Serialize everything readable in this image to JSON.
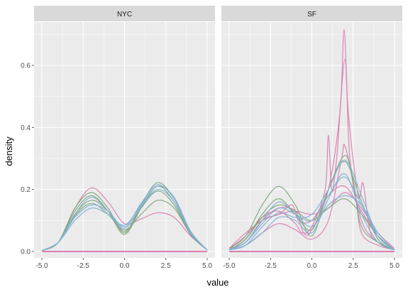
{
  "chart_data": {
    "type": "line",
    "subtype": "faceted-density",
    "xlabel": "value",
    "ylabel": "density",
    "xlim": [
      -5,
      5
    ],
    "ylim": [
      0,
      0.72
    ],
    "x_ticks": [
      -5,
      -2.5,
      0,
      2.5,
      5
    ],
    "x_tick_labels": [
      "-5.0",
      "-2.5",
      "0.0",
      "2.5",
      "5.0"
    ],
    "y_ticks": [
      0,
      0.2,
      0.4,
      0.6
    ],
    "y_tick_labels": [
      "0.0",
      "0.2",
      "0.4",
      "0.6"
    ],
    "grid": true,
    "legend": "none",
    "colors": {
      "green": "#7fa77f",
      "blue": "#7fb0d6",
      "pink": "#d97fb1",
      "panel_bg": "#ebebeb",
      "strip_bg": "#d9d9d9",
      "grid": "#ffffff"
    },
    "facets": [
      {
        "name": "NYC",
        "curves": [
          {
            "color": "pink",
            "points": [
              [
                -5,
                0.003
              ],
              [
                -4,
                0.03
              ],
              [
                -3,
                0.14
              ],
              [
                -2,
                0.205
              ],
              [
                -1,
                0.16
              ],
              [
                0,
                0.09
              ],
              [
                1,
                0.105
              ],
              [
                2,
                0.125
              ],
              [
                3,
                0.11
              ],
              [
                4,
                0.05
              ],
              [
                5,
                0.005
              ]
            ]
          },
          {
            "color": "green",
            "points": [
              [
                -5,
                0.003
              ],
              [
                -4,
                0.03
              ],
              [
                -3,
                0.14
              ],
              [
                -2,
                0.19
              ],
              [
                -1,
                0.14
              ],
              [
                0,
                0.06
              ],
              [
                1,
                0.15
              ],
              [
                2,
                0.222
              ],
              [
                3,
                0.17
              ],
              [
                4,
                0.06
              ],
              [
                5,
                0.005
              ]
            ]
          },
          {
            "color": "green",
            "points": [
              [
                -5,
                0.003
              ],
              [
                -4,
                0.03
              ],
              [
                -3,
                0.13
              ],
              [
                -2,
                0.18
              ],
              [
                -1,
                0.13
              ],
              [
                0,
                0.055
              ],
              [
                1,
                0.14
              ],
              [
                2,
                0.21
              ],
              [
                3,
                0.16
              ],
              [
                4,
                0.055
              ],
              [
                5,
                0.005
              ]
            ]
          },
          {
            "color": "green",
            "points": [
              [
                -5,
                0.003
              ],
              [
                -4,
                0.03
              ],
              [
                -3,
                0.12
              ],
              [
                -2,
                0.165
              ],
              [
                -1,
                0.13
              ],
              [
                0,
                0.065
              ],
              [
                1,
                0.14
              ],
              [
                2,
                0.195
              ],
              [
                3,
                0.15
              ],
              [
                4,
                0.055
              ],
              [
                5,
                0.005
              ]
            ]
          },
          {
            "color": "green",
            "points": [
              [
                -5,
                0.003
              ],
              [
                -4,
                0.03
              ],
              [
                -3,
                0.115
              ],
              [
                -2,
                0.155
              ],
              [
                -1,
                0.12
              ],
              [
                0,
                0.07
              ],
              [
                1,
                0.12
              ],
              [
                2,
                0.165
              ],
              [
                3,
                0.14
              ],
              [
                4,
                0.055
              ],
              [
                5,
                0.005
              ]
            ]
          },
          {
            "color": "blue",
            "points": [
              [
                -5,
                0.003
              ],
              [
                -4,
                0.03
              ],
              [
                -3,
                0.1
              ],
              [
                -2,
                0.14
              ],
              [
                -1,
                0.12
              ],
              [
                0,
                0.085
              ],
              [
                1,
                0.15
              ],
              [
                2,
                0.21
              ],
              [
                3,
                0.175
              ],
              [
                4,
                0.065
              ],
              [
                5,
                0.005
              ]
            ]
          },
          {
            "color": "blue",
            "points": [
              [
                -5,
                0.003
              ],
              [
                -4,
                0.03
              ],
              [
                -3,
                0.11
              ],
              [
                -2,
                0.15
              ],
              [
                -1,
                0.13
              ],
              [
                0,
                0.08
              ],
              [
                1,
                0.155
              ],
              [
                2,
                0.215
              ],
              [
                3,
                0.17
              ],
              [
                4,
                0.06
              ],
              [
                5,
                0.005
              ]
            ]
          },
          {
            "color": "blue",
            "points": [
              [
                -5,
                0.003
              ],
              [
                -4,
                0.03
              ],
              [
                -3,
                0.12
              ],
              [
                -2,
                0.175
              ],
              [
                -1,
                0.13
              ],
              [
                0,
                0.075
              ],
              [
                1,
                0.145
              ],
              [
                2,
                0.2
              ],
              [
                3,
                0.16
              ],
              [
                4,
                0.06
              ],
              [
                5,
                0.005
              ]
            ]
          }
        ]
      },
      {
        "name": "SF",
        "curves": [
          {
            "color": "pink",
            "points": [
              [
                -5,
                0.01
              ],
              [
                -4,
                0.03
              ],
              [
                -3,
                0.1
              ],
              [
                -2,
                0.14
              ],
              [
                -1,
                0.13
              ],
              [
                -0.5,
                0.06
              ],
              [
                0,
                0.07
              ],
              [
                1,
                0.2
              ],
              [
                1.7,
                0.45
              ],
              [
                1.95,
                0.715
              ],
              [
                2.2,
                0.45
              ],
              [
                2.8,
                0.18
              ],
              [
                3.1,
                0.22
              ],
              [
                3.5,
                0.07
              ],
              [
                4,
                0.03
              ],
              [
                5,
                0.005
              ]
            ]
          },
          {
            "color": "pink",
            "points": [
              [
                -5,
                0.01
              ],
              [
                -4,
                0.05
              ],
              [
                -3,
                0.11
              ],
              [
                -2,
                0.13
              ],
              [
                -1,
                0.09
              ],
              [
                -0.6,
                0.06
              ],
              [
                0,
                0.08
              ],
              [
                0.8,
                0.2
              ],
              [
                1.0,
                0.375
              ],
              [
                1.2,
                0.2
              ],
              [
                1.5,
                0.3
              ],
              [
                2,
                0.62
              ],
              [
                2.3,
                0.3
              ],
              [
                3,
                0.1
              ],
              [
                4,
                0.03
              ],
              [
                5,
                0.005
              ]
            ]
          },
          {
            "color": "pink",
            "points": [
              [
                -5,
                0.01
              ],
              [
                -4,
                0.03
              ],
              [
                -3,
                0.1
              ],
              [
                -2,
                0.12
              ],
              [
                -1.2,
                0.15
              ],
              [
                -0.8,
                0.1
              ],
              [
                0,
                0.1
              ],
              [
                1,
                0.18
              ],
              [
                2,
                0.21
              ],
              [
                3,
                0.13
              ],
              [
                4,
                0.05
              ],
              [
                5,
                0.005
              ]
            ]
          },
          {
            "color": "pink",
            "points": [
              [
                -5,
                0.01
              ],
              [
                -4,
                0.06
              ],
              [
                -3,
                0.1
              ],
              [
                -2,
                0.12
              ],
              [
                -1,
                0.13
              ],
              [
                0,
                0.12
              ],
              [
                1,
                0.14
              ],
              [
                2,
                0.19
              ],
              [
                3,
                0.14
              ],
              [
                4,
                0.06
              ],
              [
                5,
                0.01
              ]
            ]
          },
          {
            "color": "pink",
            "points": [
              [
                -5,
                0.005
              ],
              [
                -4,
                0.02
              ],
              [
                -3,
                0.06
              ],
              [
                -2,
                0.09
              ],
              [
                -1,
                0.07
              ],
              [
                0,
                0.04
              ],
              [
                1,
                0.1
              ],
              [
                1.8,
                0.3
              ],
              [
                2,
                0.34
              ],
              [
                2.6,
                0.2
              ],
              [
                3,
                0.06
              ],
              [
                4,
                0.02
              ],
              [
                5,
                0.005
              ]
            ]
          },
          {
            "color": "green",
            "points": [
              [
                -5,
                0.01
              ],
              [
                -4,
                0.05
              ],
              [
                -3,
                0.15
              ],
              [
                -2,
                0.21
              ],
              [
                -1,
                0.15
              ],
              [
                0,
                0.05
              ],
              [
                1,
                0.2
              ],
              [
                2,
                0.31
              ],
              [
                2.5,
                0.22
              ],
              [
                3,
                0.08
              ],
              [
                4,
                0.03
              ],
              [
                5,
                0.005
              ]
            ]
          },
          {
            "color": "green",
            "points": [
              [
                -5,
                0.005
              ],
              [
                -4,
                0.04
              ],
              [
                -3,
                0.12
              ],
              [
                -2,
                0.17
              ],
              [
                -1,
                0.12
              ],
              [
                0,
                0.07
              ],
              [
                1,
                0.2
              ],
              [
                2,
                0.29
              ],
              [
                3,
                0.16
              ],
              [
                4,
                0.04
              ],
              [
                5,
                0.005
              ]
            ]
          },
          {
            "color": "green",
            "points": [
              [
                -5,
                0.005
              ],
              [
                -4,
                0.04
              ],
              [
                -3,
                0.11
              ],
              [
                -2,
                0.15
              ],
              [
                -1,
                0.13
              ],
              [
                0,
                0.1
              ],
              [
                1,
                0.14
              ],
              [
                2,
                0.17
              ],
              [
                3,
                0.12
              ],
              [
                4,
                0.05
              ],
              [
                5,
                0.005
              ]
            ]
          },
          {
            "color": "blue",
            "points": [
              [
                -5,
                0.005
              ],
              [
                -4,
                0.03
              ],
              [
                -3,
                0.09
              ],
              [
                -2,
                0.14
              ],
              [
                -1,
                0.12
              ],
              [
                0,
                0.1
              ],
              [
                1,
                0.18
              ],
              [
                2,
                0.24
              ],
              [
                3,
                0.15
              ],
              [
                4,
                0.05
              ],
              [
                5,
                0.005
              ]
            ]
          },
          {
            "color": "blue",
            "points": [
              [
                -5,
                0.005
              ],
              [
                -4,
                0.02
              ],
              [
                -3,
                0.08
              ],
              [
                -2,
                0.125
              ],
              [
                -1,
                0.11
              ],
              [
                0,
                0.12
              ],
              [
                1,
                0.2
              ],
              [
                2,
                0.295
              ],
              [
                3,
                0.18
              ],
              [
                4,
                0.05
              ],
              [
                5,
                0.005
              ]
            ]
          },
          {
            "color": "blue",
            "points": [
              [
                -5,
                0.005
              ],
              [
                -4,
                0.03
              ],
              [
                -3,
                0.1
              ],
              [
                -2,
                0.16
              ],
              [
                -1,
                0.12
              ],
              [
                0,
                0.08
              ],
              [
                1,
                0.15
              ],
              [
                2,
                0.18
              ],
              [
                3,
                0.15
              ],
              [
                4,
                0.06
              ],
              [
                5,
                0.005
              ]
            ]
          },
          {
            "color": "blue",
            "points": [
              [
                -5,
                0.005
              ],
              [
                -4,
                0.02
              ],
              [
                -3,
                0.06
              ],
              [
                -2,
                0.11
              ],
              [
                -1,
                0.1
              ],
              [
                0,
                0.06
              ],
              [
                1,
                0.17
              ],
              [
                2,
                0.25
              ],
              [
                3,
                0.12
              ],
              [
                4,
                0.03
              ],
              [
                5,
                0.005
              ]
            ]
          }
        ]
      }
    ]
  }
}
